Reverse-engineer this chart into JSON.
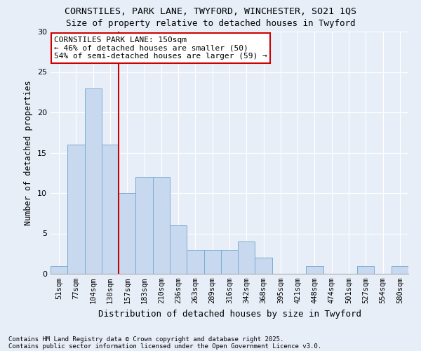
{
  "title_line1": "CORNSTILES, PARK LANE, TWYFORD, WINCHESTER, SO21 1QS",
  "title_line2": "Size of property relative to detached houses in Twyford",
  "xlabel": "Distribution of detached houses by size in Twyford",
  "ylabel": "Number of detached properties",
  "categories": [
    "51sqm",
    "77sqm",
    "104sqm",
    "130sqm",
    "157sqm",
    "183sqm",
    "210sqm",
    "236sqm",
    "263sqm",
    "289sqm",
    "316sqm",
    "342sqm",
    "368sqm",
    "395sqm",
    "421sqm",
    "448sqm",
    "474sqm",
    "501sqm",
    "527sqm",
    "554sqm",
    "580sqm"
  ],
  "values": [
    1,
    16,
    23,
    16,
    10,
    12,
    12,
    6,
    3,
    3,
    3,
    4,
    2,
    0,
    0,
    1,
    0,
    0,
    1,
    0,
    1
  ],
  "bar_color": "#c8d8ee",
  "bar_edge_color": "#7aadd4",
  "background_color": "#e8eef8",
  "grid_color": "#ffffff",
  "red_line_index": 4,
  "annotation_text": "CORNSTILES PARK LANE: 150sqm\n← 46% of detached houses are smaller (50)\n54% of semi-detached houses are larger (59) →",
  "annotation_box_color": "#ffffff",
  "annotation_box_edge": "#cc0000",
  "red_line_color": "#cc0000",
  "footnote_line1": "Contains HM Land Registry data © Crown copyright and database right 2025.",
  "footnote_line2": "Contains public sector information licensed under the Open Government Licence v3.0.",
  "ylim": [
    0,
    30
  ],
  "yticks": [
    0,
    5,
    10,
    15,
    20,
    25,
    30
  ]
}
